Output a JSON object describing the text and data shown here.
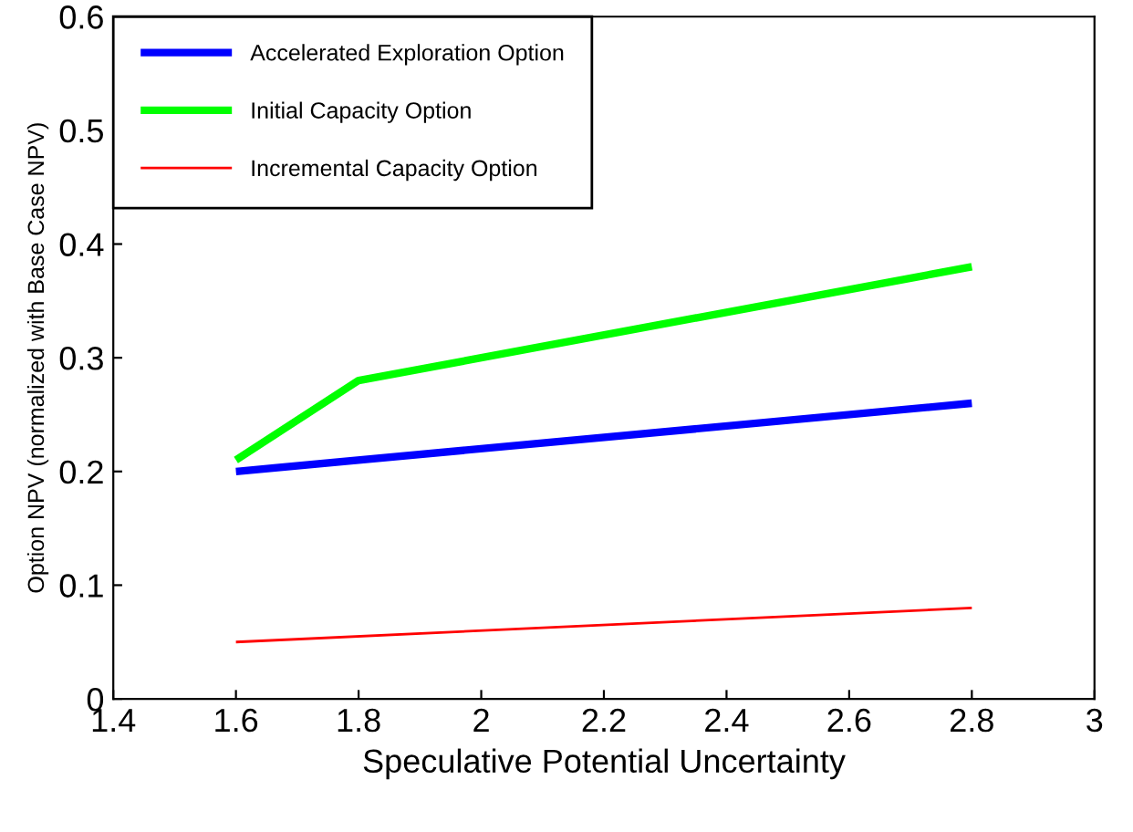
{
  "chart_data": {
    "type": "line",
    "xlabel": "Speculative Potential Uncertainty",
    "ylabel": "Option NPV (normalized with Base Case NPV)",
    "xlim": [
      1.4,
      3
    ],
    "xticks": [
      1.4,
      1.6,
      1.8,
      2,
      2.2,
      2.4,
      2.6,
      2.8,
      3
    ],
    "ylim": [
      0,
      0.6
    ],
    "yticks": [
      0,
      0.1,
      0.2,
      0.3,
      0.4,
      0.5,
      0.6
    ],
    "grid": false,
    "legend": "top left",
    "marker": "none",
    "line_style": "solid",
    "series": [
      {
        "name": "Accelerated Exploration Option",
        "color": "#0000ff",
        "x": [
          1.6,
          2.8
        ],
        "values": [
          0.2,
          0.26
        ]
      },
      {
        "name": "Initial Capacity Option",
        "color": "#00ff00",
        "x": [
          1.6,
          1.8,
          2.8
        ],
        "values": [
          0.21,
          0.28,
          0.38
        ]
      },
      {
        "name": "Incremental Capacity Option",
        "color": "#ff0000",
        "x": [
          1.6,
          2.8
        ],
        "values": [
          0.05,
          0.08
        ]
      }
    ]
  }
}
